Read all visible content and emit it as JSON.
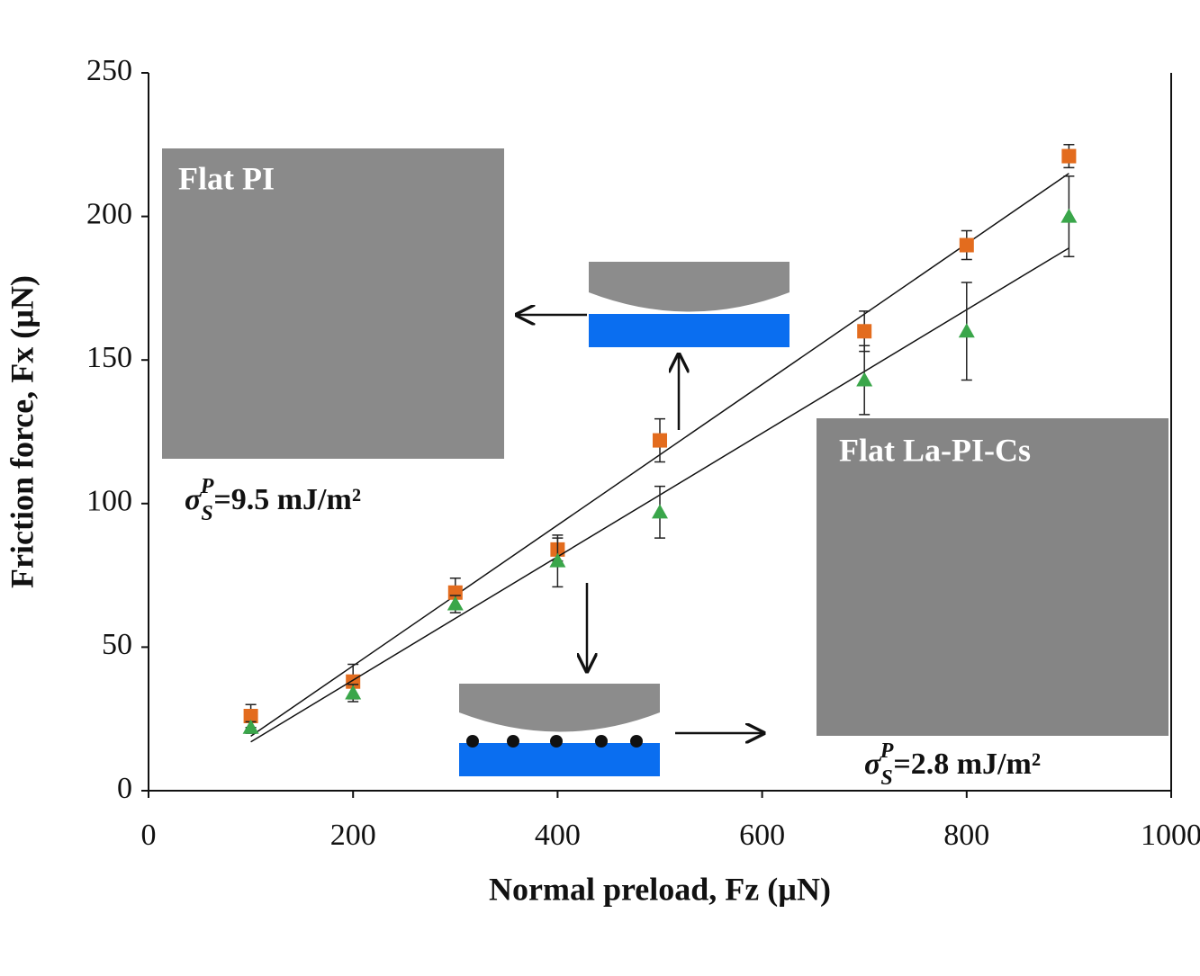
{
  "chart_data": {
    "type": "scatter",
    "x_label": "Normal preload, Fz (µN)",
    "y_label": "Friction force, Fx (µN)",
    "xlim": [
      0,
      1000
    ],
    "xticks": [
      0,
      200,
      400,
      600,
      800,
      1000
    ],
    "ylim": [
      0,
      250
    ],
    "yticks": [
      0,
      50,
      100,
      150,
      200,
      250
    ],
    "series": [
      {
        "marker": "square",
        "color": "#e36c1e",
        "x": [
          100,
          200,
          300,
          400,
          500,
          700,
          800,
          900
        ],
        "values": [
          26,
          38,
          69,
          84,
          122,
          160,
          190,
          221
        ],
        "errors": [
          4,
          6,
          5,
          4,
          7.5,
          7,
          5,
          4
        ],
        "fit": {
          "x": [
            100,
            900
          ],
          "values": [
            19,
            215
          ]
        }
      },
      {
        "marker": "triangle",
        "color": "#3aa64a",
        "x": [
          100,
          200,
          300,
          400,
          500,
          700,
          800,
          900
        ],
        "values": [
          22,
          34,
          65,
          80,
          97,
          143,
          160,
          200
        ],
        "errors": [
          2,
          3,
          3,
          9,
          9,
          12,
          17,
          14
        ],
        "fit": {
          "x": [
            100,
            900
          ],
          "values": [
            17,
            189
          ]
        }
      }
    ],
    "annotations": [
      {
        "label": "Flat PI",
        "symbol": "σ",
        "sub": "S",
        "sup": "P",
        "text": "=9.5 mJ/m²"
      },
      {
        "label": "Flat La-PI-Cs",
        "symbol": "σ",
        "sub": "S",
        "sup": "P",
        "text": "=2.8 mJ/m²"
      }
    ]
  }
}
